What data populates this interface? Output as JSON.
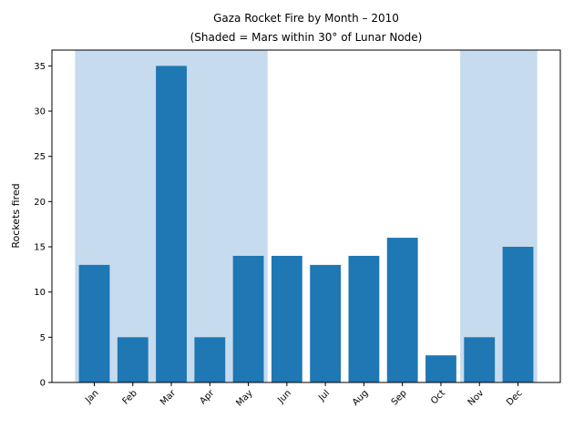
{
  "chart_data": {
    "type": "bar",
    "title": "Gaza Rocket Fire by Month – 2010",
    "subtitle": "(Shaded = Mars within 30° of Lunar Node)",
    "xlabel": "",
    "ylabel": "Rockets fired",
    "categories": [
      "Jan",
      "Feb",
      "Mar",
      "Apr",
      "May",
      "Jun",
      "Jul",
      "Aug",
      "Sep",
      "Oct",
      "Nov",
      "Dec"
    ],
    "values": [
      13,
      5,
      35,
      5,
      14,
      14,
      13,
      14,
      16,
      3,
      5,
      15
    ],
    "shaded_ranges": [
      [
        "Jan",
        "May"
      ],
      [
        "Nov",
        "Dec"
      ]
    ],
    "ylim": [
      0,
      36.75
    ],
    "yticks": [
      0,
      5,
      10,
      15,
      20,
      25,
      30,
      35
    ],
    "grid": false,
    "bar_color": "#1f77b4",
    "shade_color": "#c6dbed"
  }
}
